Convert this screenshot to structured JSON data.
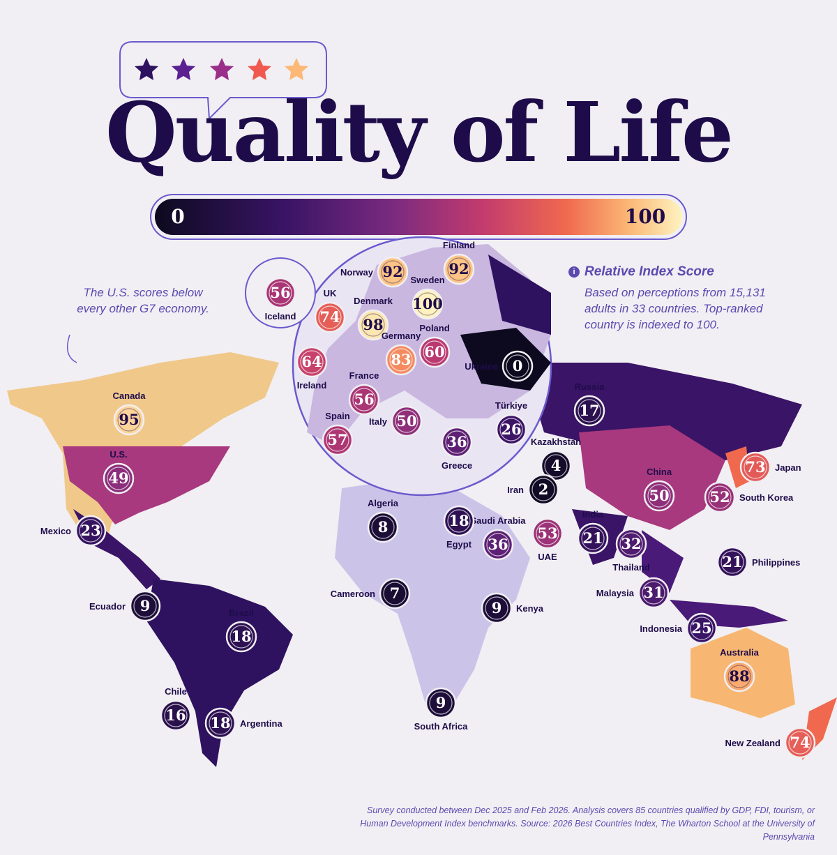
{
  "header": {
    "title": "Quality of Life"
  },
  "legend": {
    "min": 0,
    "max": 100
  },
  "annotation": "The U.S. scores below every other G7 economy.",
  "info": {
    "title": "Relative Index Score",
    "text": "Based on perceptions from 15,131 adults in 33 countries. Top-ranked country is indexed to 100."
  },
  "countries": [
    {
      "name": "Iceland",
      "score": 56
    },
    {
      "name": "UK",
      "score": 74
    },
    {
      "name": "Norway",
      "score": 92
    },
    {
      "name": "Finland",
      "score": 92
    },
    {
      "name": "Sweden",
      "score": 100
    },
    {
      "name": "Denmark",
      "score": 98
    },
    {
      "name": "Poland",
      "score": 60
    },
    {
      "name": "Ireland",
      "score": 64
    },
    {
      "name": "Germany",
      "score": 83
    },
    {
      "name": "Ukraine",
      "score": 0
    },
    {
      "name": "France",
      "score": 56
    },
    {
      "name": "Spain",
      "score": 57
    },
    {
      "name": "Italy",
      "score": 50
    },
    {
      "name": "Türkiye",
      "score": 26
    },
    {
      "name": "Greece",
      "score": 36
    },
    {
      "name": "Canada",
      "score": 95
    },
    {
      "name": "U.S.",
      "score": 49
    },
    {
      "name": "Russia",
      "score": 17
    },
    {
      "name": "Kazakhstan",
      "score": 4
    },
    {
      "name": "Japan",
      "score": 73
    },
    {
      "name": "Iran",
      "score": 2
    },
    {
      "name": "China",
      "score": 50
    },
    {
      "name": "South Korea",
      "score": 52
    },
    {
      "name": "Algeria",
      "score": 8
    },
    {
      "name": "Saudi Arabia",
      "score": 36
    },
    {
      "name": "Egypt",
      "score": 18
    },
    {
      "name": "UAE",
      "score": 53
    },
    {
      "name": "India",
      "score": 21
    },
    {
      "name": "Mexico",
      "score": 23
    },
    {
      "name": "Thailand",
      "score": 32
    },
    {
      "name": "Philippines",
      "score": 21
    },
    {
      "name": "Malaysia",
      "score": 31
    },
    {
      "name": "Cameroon",
      "score": 7
    },
    {
      "name": "Kenya",
      "score": 9
    },
    {
      "name": "Ecuador",
      "score": 9
    },
    {
      "name": "Brazil",
      "score": 18
    },
    {
      "name": "Indonesia",
      "score": 25
    },
    {
      "name": "Australia",
      "score": 88
    },
    {
      "name": "Chile",
      "score": 16
    },
    {
      "name": "Argentina",
      "score": 18
    },
    {
      "name": "South Africa",
      "score": 9
    },
    {
      "name": "New Zealand",
      "score": 74
    }
  ],
  "footnote": "Survey conducted between Dec 2025 and Feb 2026. Analysis covers 85 countries qualified by GDP, FDI, tourism, or Human Development Index benchmarks. Source: 2026 Best Countries Index, The Wharton School at the University of Pennsylvania"
}
